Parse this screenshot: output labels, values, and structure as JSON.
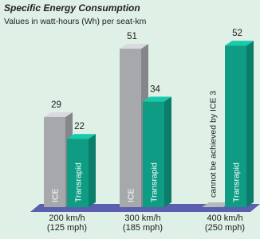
{
  "chart_data": {
    "type": "bar3d",
    "title": "Specific Energy Consumption",
    "subtitle": "Values in watt-hours (Wh) per seat-km",
    "categories": [
      [
        "200 km/h",
        "(125 mph)"
      ],
      [
        "300 km/h",
        "(185 mph)"
      ],
      [
        "400 km/h",
        "(250 mph)"
      ]
    ],
    "series": [
      {
        "name": "ICE",
        "color": "#a6a8ab",
        "values": [
          29,
          51,
          null
        ]
      },
      {
        "name": "Transrapid",
        "color": "#0f9c84",
        "values": [
          22,
          34,
          52
        ]
      }
    ],
    "annotation": "cannot be achieved by ICE 3"
  }
}
